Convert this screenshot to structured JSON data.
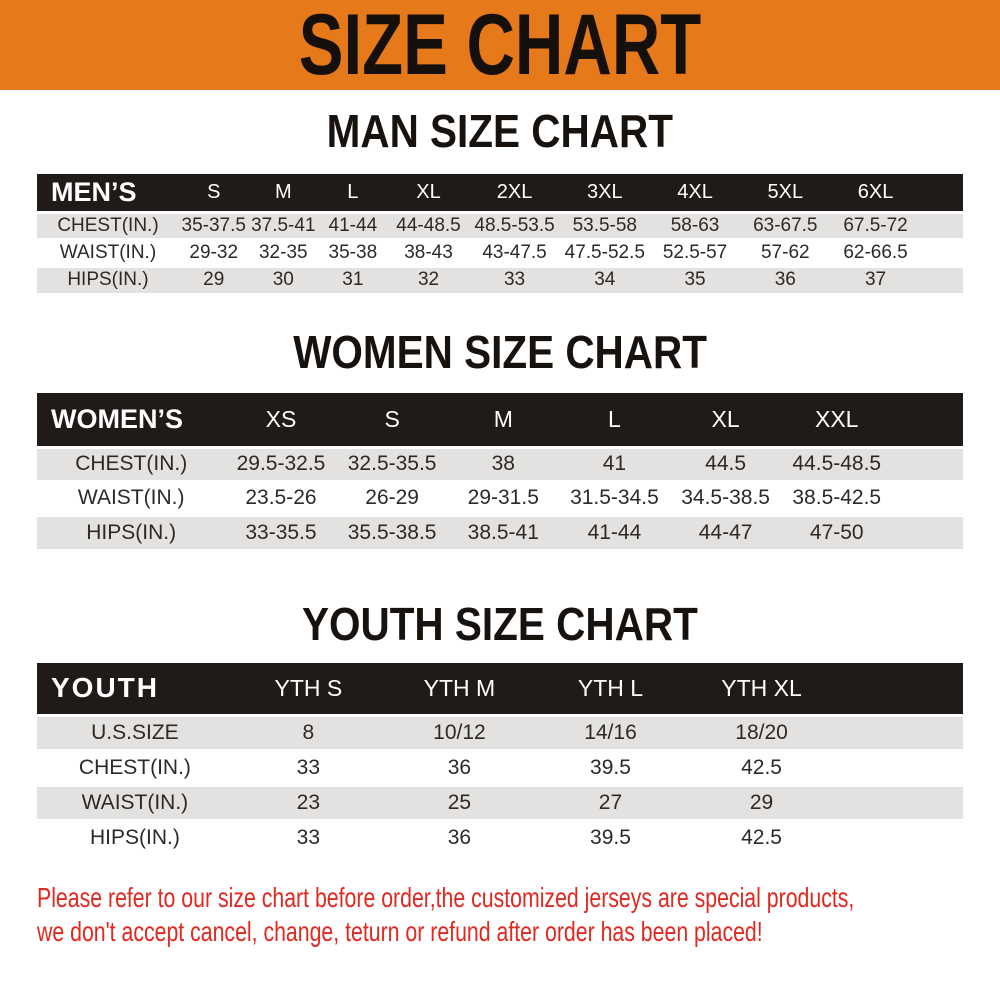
{
  "banner": {
    "title": "SIZE CHART"
  },
  "chart_data": [
    {
      "type": "table",
      "title": "MAN SIZE CHART",
      "header_label": "MEN’S",
      "columns": [
        "S",
        "M",
        "L",
        "XL",
        "2XL",
        "3XL",
        "4XL",
        "5XL",
        "6XL"
      ],
      "rows": [
        {
          "label": "CHEST(IN.)",
          "values": [
            "35-37.5",
            "37.5-41",
            "41-44",
            "44-48.5",
            "48.5-53.5",
            "53.5-58",
            "58-63",
            "63-67.5",
            "67.5-72"
          ]
        },
        {
          "label": "WAIST(IN.)",
          "values": [
            "29-32",
            "32-35",
            "35-38",
            "38-43",
            "43-47.5",
            "47.5-52.5",
            "52.5-57",
            "57-62",
            "62-66.5"
          ]
        },
        {
          "label": "HIPS(IN.)",
          "values": [
            "29",
            "30",
            "31",
            "32",
            "33",
            "34",
            "35",
            "36",
            "37"
          ]
        }
      ]
    },
    {
      "type": "table",
      "title": "WOMEN SIZE CHART",
      "header_label": "WOMEN’S",
      "columns": [
        "XS",
        "S",
        "M",
        "L",
        "XL",
        "XXL"
      ],
      "rows": [
        {
          "label": "CHEST(IN.)",
          "values": [
            "29.5-32.5",
            "32.5-35.5",
            "38",
            "41",
            "44.5",
            "44.5-48.5"
          ]
        },
        {
          "label": "WAIST(IN.)",
          "values": [
            "23.5-26",
            "26-29",
            "29-31.5",
            "31.5-34.5",
            "34.5-38.5",
            "38.5-42.5"
          ]
        },
        {
          "label": "HIPS(IN.)",
          "values": [
            "33-35.5",
            "35.5-38.5",
            "38.5-41",
            "41-44",
            "44-47",
            "47-50"
          ]
        }
      ]
    },
    {
      "type": "table",
      "title": "YOUTH SIZE CHART",
      "header_label": "YOUTH",
      "columns": [
        "YTH S",
        "YTH M",
        "YTH L",
        "YTH XL"
      ],
      "rows": [
        {
          "label": "U.S.SIZE",
          "values": [
            "8",
            "10/12",
            "14/16",
            "18/20"
          ]
        },
        {
          "label": "CHEST(IN.)",
          "values": [
            "33",
            "36",
            "39.5",
            "42.5"
          ]
        },
        {
          "label": "WAIST(IN.)",
          "values": [
            "23",
            "25",
            "27",
            "29"
          ]
        },
        {
          "label": "HIPS(IN.)",
          "values": [
            "33",
            "36",
            "39.5",
            "42.5"
          ]
        }
      ]
    }
  ],
  "footer": {
    "line1": "Please refer to our size chart before order,the customized jerseys are special products,",
    "line2": "we don't accept cancel, change, teturn or refund after order has been placed!"
  },
  "colors": {
    "banner_bg": "#E6791A",
    "table_header_bg": "#201B18",
    "row_alt_bg": "#E3E2E0",
    "footer_text": "#E02920"
  }
}
